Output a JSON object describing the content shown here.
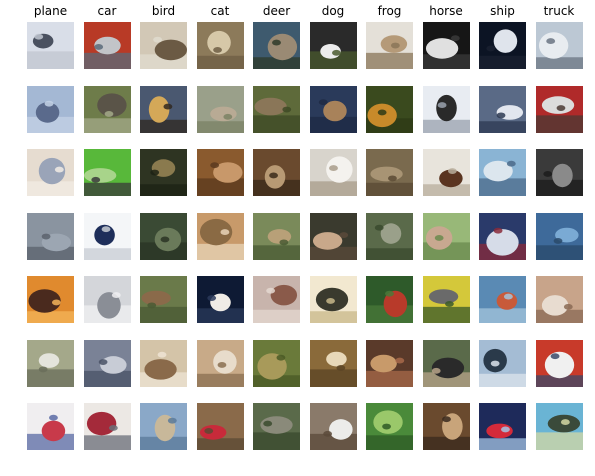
{
  "figure": {
    "columns": [
      {
        "label": "plane",
        "key": "plane"
      },
      {
        "label": "car",
        "key": "car"
      },
      {
        "label": "bird",
        "key": "bird"
      },
      {
        "label": "cat",
        "key": "cat"
      },
      {
        "label": "deer",
        "key": "deer"
      },
      {
        "label": "dog",
        "key": "dog"
      },
      {
        "label": "frog",
        "key": "frog"
      },
      {
        "label": "horse",
        "key": "horse"
      },
      {
        "label": "ship",
        "key": "ship"
      },
      {
        "label": "truck",
        "key": "truck"
      }
    ],
    "samples_per_class": 7,
    "image_grid": [
      [
        [
          "#d9dee8",
          "#4a5160",
          "#c0c6d0"
        ],
        [
          "#b83a26",
          "#c2c4c8",
          "#5a6b7a"
        ],
        [
          "#d2c8b6",
          "#6b5a44",
          "#e0dccf"
        ],
        [
          "#8c7a5a",
          "#d6c8a8",
          "#6e5e44"
        ],
        [
          "#3e5a6e",
          "#9a8a74",
          "#2e3a2a"
        ],
        [
          "#2a2a2a",
          "#ececec",
          "#4a5a2e"
        ],
        [
          "#e4e0d8",
          "#b59a78",
          "#8a7658"
        ],
        [
          "#161616",
          "#e0e0e0",
          "#3a3a3a"
        ],
        [
          "#0c1424",
          "#dfe4ec",
          "#1a2030"
        ],
        [
          "#bcc8d4",
          "#e8ecf0",
          "#6a7482"
        ]
      ],
      [
        [
          "#a4b8d4",
          "#5a6a8c",
          "#c4d2e6"
        ],
        [
          "#6e7c4a",
          "#5a5448",
          "#a4aa8a"
        ],
        [
          "#4a5870",
          "#d4a858",
          "#302820"
        ],
        [
          "#9aa08a",
          "#b8aa94",
          "#7a8264"
        ],
        [
          "#5e6a3a",
          "#8a7658",
          "#3e4a26"
        ],
        [
          "#2a3a5a",
          "#a8825a",
          "#1e2a44"
        ],
        [
          "#3a4a1e",
          "#c88a2a",
          "#2e3a16"
        ],
        [
          "#e8ecf2",
          "#2a2a2a",
          "#9aa2ae"
        ],
        [
          "#5a6a86",
          "#e2e6ee",
          "#2e3a52"
        ],
        [
          "#b02a2a",
          "#dcdcdc",
          "#4a3a34"
        ]
      ],
      [
        [
          "#e6dcd0",
          "#9aa4b8",
          "#f2ece4"
        ],
        [
          "#58b83a",
          "#a8d48a",
          "#3a3a3a"
        ],
        [
          "#2e3422",
          "#8a7a4e",
          "#1c2214"
        ],
        [
          "#8a5a2e",
          "#c8986a",
          "#5a3a1e"
        ],
        [
          "#6a4a2e",
          "#b89a74",
          "#3a2a1a"
        ],
        [
          "#d8d4cc",
          "#f4f2ee",
          "#a89c8a"
        ],
        [
          "#7a6a4e",
          "#a89474",
          "#5a4a34"
        ],
        [
          "#e8e4dc",
          "#5a3420",
          "#b8ae9c"
        ],
        [
          "#8ab4d4",
          "#dce6ee",
          "#4a6a8a"
        ],
        [
          "#3a3a3a",
          "#8a8a8a",
          "#1c1c1c"
        ]
      ],
      [
        [
          "#8a94a0",
          "#9ca6b2",
          "#5a626c"
        ],
        [
          "#f4f6f8",
          "#1e2e5a",
          "#c8ccd4"
        ],
        [
          "#3a4a34",
          "#6a7a5a",
          "#2a3424"
        ],
        [
          "#c89a6a",
          "#8a6a44",
          "#e8d4b8"
        ],
        [
          "#7a8a5a",
          "#b8a078",
          "#4a5a34"
        ],
        [
          "#3a3a2e",
          "#c8a88a",
          "#5a4a3a"
        ],
        [
          "#5a6a4a",
          "#9aa08a",
          "#3a4a2e"
        ],
        [
          "#98b878",
          "#c8a890",
          "#6a8a4e"
        ],
        [
          "#2a3a6a",
          "#d6dce8",
          "#8a2a3a"
        ],
        [
          "#3e6a9a",
          "#7aaad4",
          "#2a4a6a"
        ]
      ],
      [
        [
          "#e08a2e",
          "#4a2a1e",
          "#f4b45a"
        ],
        [
          "#d4d6da",
          "#8a8e96",
          "#f0f0f2"
        ],
        [
          "#6a7a4a",
          "#8a6a4a",
          "#4a5a34"
        ],
        [
          "#0e1a34",
          "#f0ece6",
          "#2a3a5a"
        ],
        [
          "#c8b4ac",
          "#8a5a4a",
          "#e4d8d0"
        ],
        [
          "#f2e8d0",
          "#3a3a2e",
          "#c8b88a"
        ],
        [
          "#2e5a2a",
          "#b83a2a",
          "#4a7a3a"
        ],
        [
          "#d4c83a",
          "#6a6a6a",
          "#3a5a2a"
        ],
        [
          "#5a8ab4",
          "#c85a3a",
          "#a4c4dc"
        ],
        [
          "#c8a48a",
          "#e8dcd0",
          "#8a6a54"
        ]
      ],
      [
        [
          "#a4a88a",
          "#e4e4dc",
          "#6a6e5a"
        ],
        [
          "#7a8296",
          "#c8ccd6",
          "#4a5266"
        ],
        [
          "#d4c4a8",
          "#8a6a4a",
          "#eee4d4"
        ],
        [
          "#c8aa88",
          "#e8dccb",
          "#8a6e50"
        ],
        [
          "#6a7a3a",
          "#a89a5a",
          "#4a5a26"
        ],
        [
          "#8a6a3a",
          "#e8d8b8",
          "#5a4424"
        ],
        [
          "#5a3a2a",
          "#c89a6a",
          "#a86a4a"
        ],
        [
          "#5a6a4a",
          "#2a2a2a",
          "#b8a48a"
        ],
        [
          "#a4bcd4",
          "#2a3a4a",
          "#dce4ec"
        ],
        [
          "#c83a2a",
          "#f0f0f0",
          "#3a4a6a"
        ]
      ],
      [
        [
          "#f0eef0",
          "#c83a4a",
          "#5a6aa4"
        ],
        [
          "#ece8e4",
          "#a42a3a",
          "#6a6e78"
        ],
        [
          "#8aa8c8",
          "#c8b89a",
          "#5a7a9a"
        ],
        [
          "#8a6a4a",
          "#c82a3a",
          "#5a4a34"
        ],
        [
          "#5a6a4a",
          "#8a8a7a",
          "#3a4a2e"
        ],
        [
          "#8a7a6a",
          "#ececea",
          "#5a4a3a"
        ],
        [
          "#4a8a3a",
          "#9ac86a",
          "#2e5a26"
        ],
        [
          "#6a4a2e",
          "#c8a47a",
          "#3a2a1e"
        ],
        [
          "#1e2a5a",
          "#d42a3a",
          "#a4c4e4"
        ],
        [
          "#6ab4d4",
          "#3a4a3a",
          "#d4d8a4"
        ]
      ]
    ]
  }
}
